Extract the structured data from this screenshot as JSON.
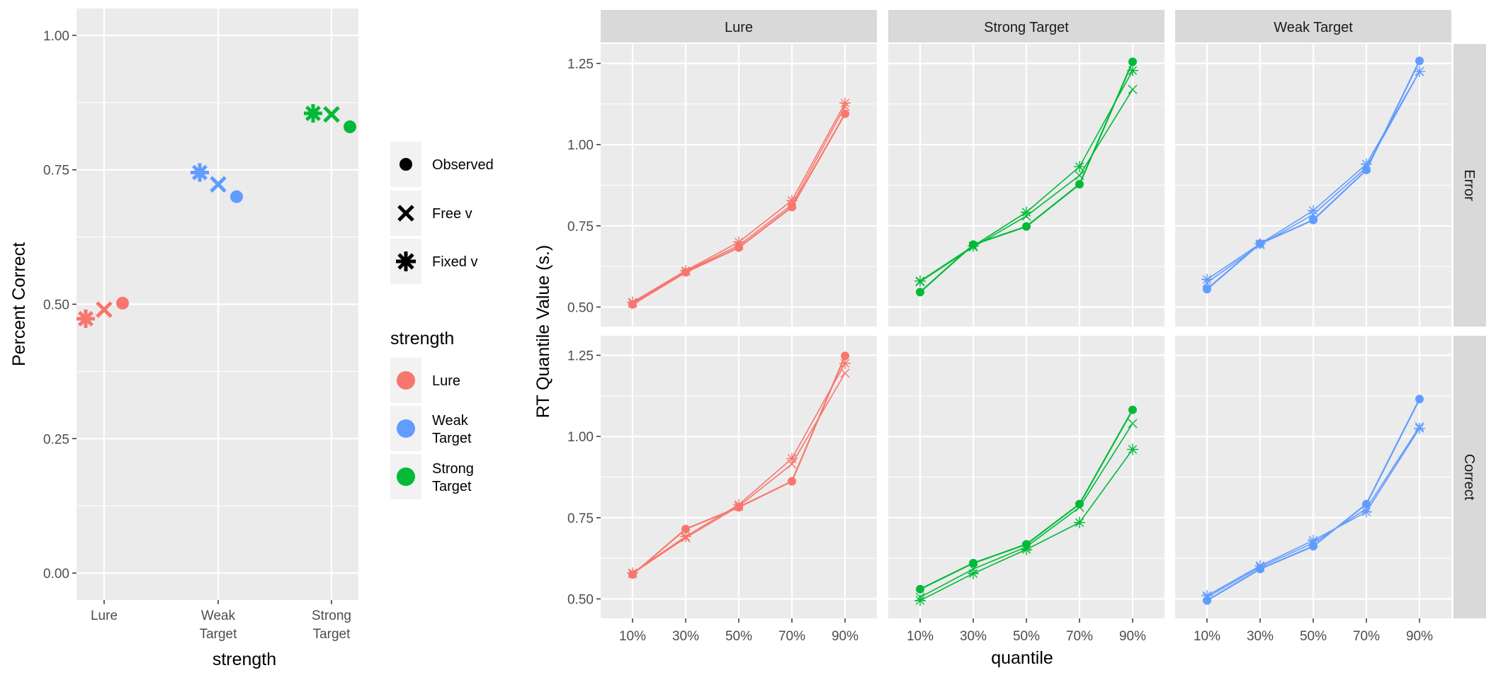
{
  "colors": {
    "lure": "#F8766D",
    "weak": "#619CFF",
    "strong": "#00BA38",
    "panel_bg": "#EBEBEB",
    "strip_bg": "#D9D9D9",
    "grid": "#FFFFFF",
    "text_dark": "#000000",
    "text_axis": "#4D4D4D"
  },
  "chart_data": [
    {
      "type": "scatter",
      "ylabel": "Percent Correct",
      "xlabel": "strength",
      "categories": [
        "Lure",
        "Weak\nTarget",
        "Strong\nTarget"
      ],
      "ylim": [
        -0.05,
        1.05
      ],
      "yticks": [
        "0.00",
        "0.25",
        "0.50",
        "0.75",
        "1.00"
      ],
      "ytick_values": [
        0,
        0.25,
        0.5,
        0.75,
        1.0
      ],
      "grid": true,
      "series": [
        {
          "name": "Fixed v",
          "marker": "asterisk",
          "values": [
            0.473,
            0.745,
            0.855
          ]
        },
        {
          "name": "Free v",
          "marker": "cross",
          "values": [
            0.49,
            0.723,
            0.853
          ]
        },
        {
          "name": "Observed",
          "marker": "circle",
          "values": [
            0.502,
            0.7,
            0.83
          ]
        }
      ],
      "legend_shape": {
        "items": [
          "Observed",
          "Free v",
          "Fixed v"
        ],
        "placement": "right"
      },
      "legend_color": {
        "title": "strength",
        "items": [
          "Lure",
          "Weak\nTarget",
          "Strong\nTarget"
        ],
        "placement": "right"
      }
    },
    {
      "type": "line",
      "xlabel": "quantile",
      "ylabel": "RT Quantile Value (s.)",
      "x": [
        "10%",
        "30%",
        "50%",
        "70%",
        "90%"
      ],
      "ylim": [
        0.44,
        1.31
      ],
      "yticks": [
        "0.50",
        "0.75",
        "1.00",
        "1.25"
      ],
      "ytick_values": [
        0.5,
        0.75,
        1.0,
        1.25
      ],
      "grid": true,
      "facet_columns": [
        "Lure",
        "Strong Target",
        "Weak Target"
      ],
      "facet_rows": [
        "Error",
        "Correct"
      ],
      "panels": [
        {
          "row": "Error",
          "col": "Lure",
          "series": [
            {
              "name": "Observed",
              "values": [
                0.508,
                0.607,
                0.683,
                0.808,
                1.095
              ]
            },
            {
              "name": "Free v",
              "values": [
                0.512,
                0.61,
                0.69,
                0.815,
                1.118
              ]
            },
            {
              "name": "Fixed v",
              "values": [
                0.515,
                0.612,
                0.7,
                0.828,
                1.128
              ]
            }
          ]
        },
        {
          "row": "Error",
          "col": "Strong Target",
          "series": [
            {
              "name": "Observed",
              "values": [
                0.546,
                0.692,
                0.748,
                0.878,
                1.255
              ]
            },
            {
              "name": "Free v",
              "values": [
                0.578,
                0.685,
                0.78,
                0.905,
                1.17
              ]
            },
            {
              "name": "Fixed v",
              "values": [
                0.58,
                0.688,
                0.792,
                0.932,
                1.228
              ]
            }
          ]
        },
        {
          "row": "Error",
          "col": "Weak Target",
          "series": [
            {
              "name": "Observed",
              "values": [
                0.555,
                0.695,
                0.768,
                0.922,
                1.258
              ]
            },
            {
              "name": "Free v",
              "values": [
                0.575,
                0.692,
                0.785,
                0.93,
                1.225
              ]
            },
            {
              "name": "Fixed v",
              "values": [
                0.585,
                0.695,
                0.797,
                0.94,
                1.225
              ]
            }
          ]
        },
        {
          "row": "Correct",
          "col": "Lure",
          "series": [
            {
              "name": "Observed",
              "values": [
                0.575,
                0.715,
                0.782,
                0.862,
                1.248
              ]
            },
            {
              "name": "Free v",
              "values": [
                0.578,
                0.688,
                0.785,
                0.915,
                1.195
              ]
            },
            {
              "name": "Fixed v",
              "values": [
                0.58,
                0.692,
                0.79,
                0.932,
                1.225
              ]
            }
          ]
        },
        {
          "row": "Correct",
          "col": "Strong Target",
          "series": [
            {
              "name": "Observed",
              "values": [
                0.53,
                0.61,
                0.668,
                0.792,
                1.082
              ]
            },
            {
              "name": "Free v",
              "values": [
                0.505,
                0.592,
                0.66,
                0.782,
                1.04
              ]
            },
            {
              "name": "Fixed v",
              "values": [
                0.495,
                0.578,
                0.652,
                0.735,
                0.96
              ]
            }
          ]
        },
        {
          "row": "Correct",
          "col": "Weak Target",
          "series": [
            {
              "name": "Observed",
              "values": [
                0.495,
                0.592,
                0.662,
                0.792,
                1.115
              ]
            },
            {
              "name": "Free v",
              "values": [
                0.505,
                0.598,
                0.672,
                0.778,
                1.03
              ]
            },
            {
              "name": "Fixed v",
              "values": [
                0.51,
                0.602,
                0.68,
                0.768,
                1.025
              ]
            }
          ]
        }
      ]
    }
  ]
}
